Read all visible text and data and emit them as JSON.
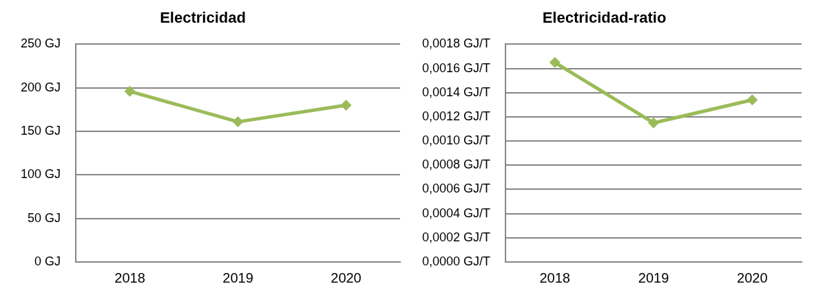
{
  "chart_data": [
    {
      "type": "line",
      "title": "Electricidad",
      "categories": [
        "2018",
        "2019",
        "2020"
      ],
      "series": [
        {
          "color": "#9bbb59",
          "values": [
            196,
            161,
            180
          ]
        }
      ],
      "ylim": [
        0,
        250
      ],
      "yticks": [
        {
          "value": 0,
          "label": "0 GJ"
        },
        {
          "value": 50,
          "label": "50 GJ"
        },
        {
          "value": 100,
          "label": "100 GJ"
        },
        {
          "value": 150,
          "label": "150 GJ"
        },
        {
          "value": 200,
          "label": "200 GJ"
        },
        {
          "value": 250,
          "label": "250 GJ"
        }
      ],
      "grid": "y",
      "legend": false,
      "marker": "diamond",
      "line_style": "solid"
    },
    {
      "type": "line",
      "title": "Electricidad-ratio",
      "categories": [
        "2018",
        "2019",
        "2020"
      ],
      "series": [
        {
          "color": "#9bbb59",
          "values": [
            0.00165,
            0.00115,
            0.00134
          ]
        }
      ],
      "ylim": [
        0,
        0.0018
      ],
      "yticks": [
        {
          "value": 0,
          "label": "0,0000 GJ/T"
        },
        {
          "value": 0.0002,
          "label": "0,0002 GJ/T"
        },
        {
          "value": 0.0004,
          "label": "0,0004 GJ/T"
        },
        {
          "value": 0.0006,
          "label": "0,0006 GJ/T"
        },
        {
          "value": 0.0008,
          "label": "0,0008 GJ/T"
        },
        {
          "value": 0.001,
          "label": "0,0010 GJ/T"
        },
        {
          "value": 0.0012,
          "label": "0,0012 GJ/T"
        },
        {
          "value": 0.0014,
          "label": "0,0014 GJ/T"
        },
        {
          "value": 0.0016,
          "label": "0,0016 GJ/T"
        },
        {
          "value": 0.0018,
          "label": "0,0018 GJ/T"
        }
      ],
      "grid": "y",
      "legend": false,
      "marker": "diamond",
      "line_style": "solid"
    }
  ]
}
